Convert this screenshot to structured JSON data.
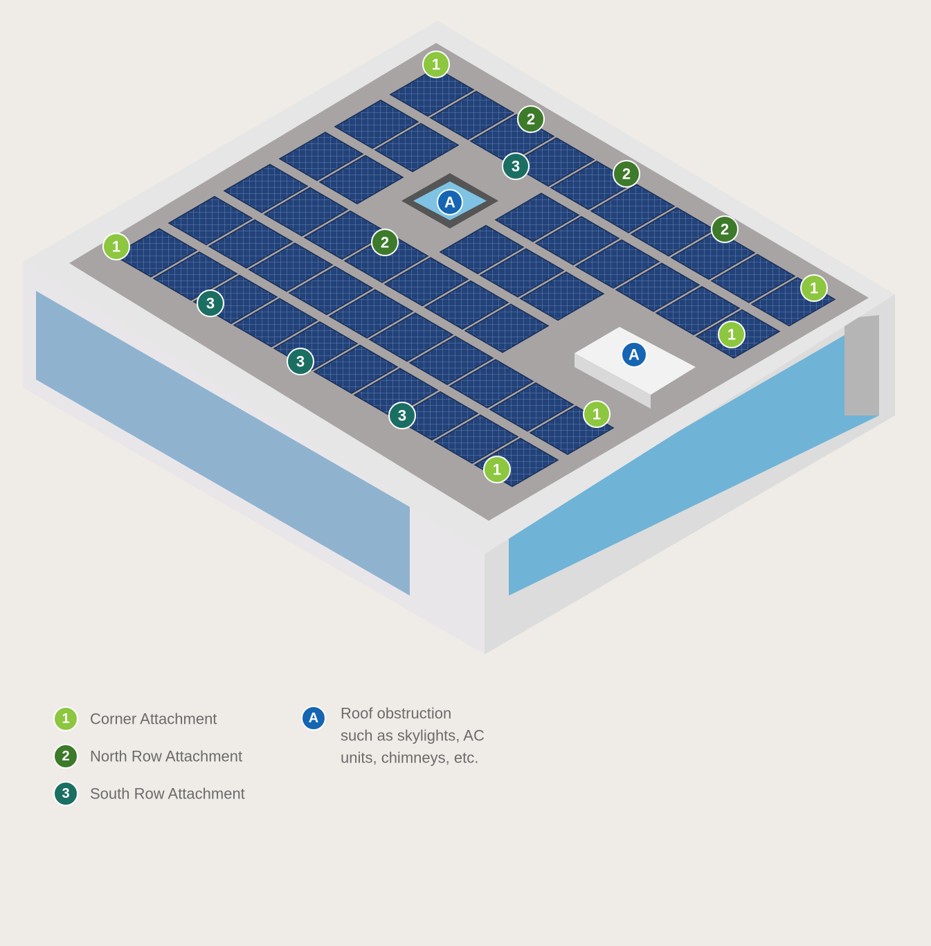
{
  "legend": {
    "items": [
      {
        "badge": "1",
        "text": "Corner Attachment"
      },
      {
        "badge": "2",
        "text": "North Row Attachment"
      },
      {
        "badge": "3",
        "text": "South Row Attachment"
      }
    ],
    "obstruction": {
      "badge": "A",
      "lines": [
        "Roof obstruction",
        "such as skylights, AC",
        "units, chimneys, etc."
      ]
    }
  }
}
